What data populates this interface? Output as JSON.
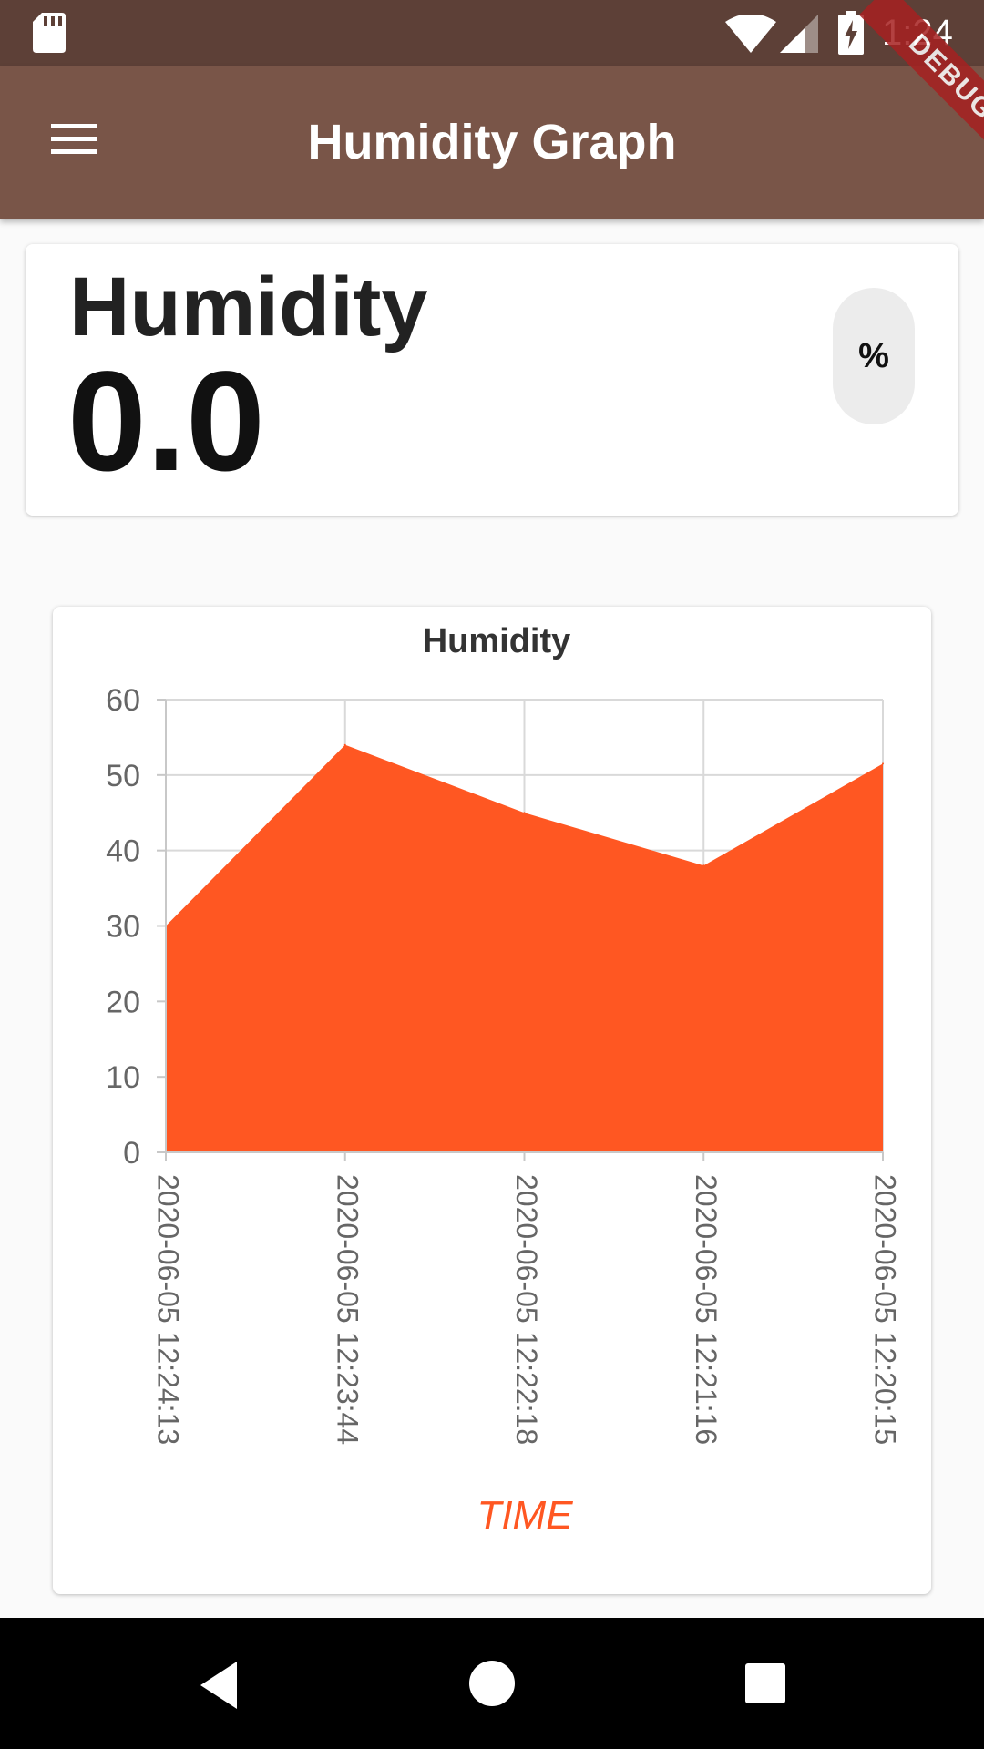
{
  "status_bar": {
    "time": "1:24",
    "icons": [
      "sd-card-icon",
      "wifi-icon",
      "cell-signal-icon",
      "battery-charging-icon"
    ]
  },
  "app_bar": {
    "title": "Humidity Graph",
    "menu_icon": "hamburger-menu-icon",
    "background": "#795548",
    "status_background": "#5d4037"
  },
  "debug_banner": {
    "label": "DEBUG"
  },
  "reading": {
    "label": "Humidity",
    "value": "0.0",
    "unit_button": "%"
  },
  "chart_data": {
    "type": "area",
    "title": "Humidity",
    "xlabel": "TIME",
    "ylabel": "",
    "categories": [
      "2020-06-05 12:24:13",
      "2020-06-05 12:23:44",
      "2020-06-05 12:22:18",
      "2020-06-05 12:21:16",
      "2020-06-05 12:20:15"
    ],
    "series": [
      {
        "values": [
          30,
          54,
          45,
          38,
          51.5
        ]
      }
    ],
    "ylim": [
      0,
      60
    ],
    "yticks": [
      "0",
      "10",
      "20",
      "30",
      "40",
      "50",
      "60"
    ],
    "grid": true,
    "fill_color": "#ff5722",
    "xlabel_color": "#ff5722"
  },
  "nav_bar": {
    "buttons": [
      "back-icon",
      "home-icon",
      "recents-icon"
    ]
  }
}
